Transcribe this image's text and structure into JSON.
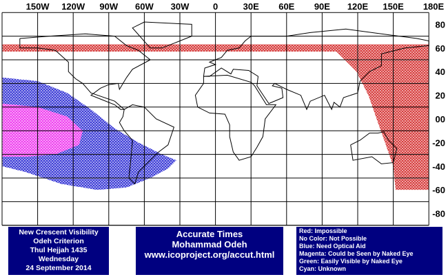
{
  "map": {
    "longitude_labels": [
      "150W",
      "120W",
      "90W",
      "60W",
      "30W",
      "0",
      "30E",
      "60E",
      "90E",
      "120E",
      "150E",
      "180E"
    ],
    "latitude_labels": [
      "80",
      "60",
      "40",
      "20",
      "00",
      "-20",
      "-40",
      "-60",
      "-80"
    ]
  },
  "panels": {
    "left": [
      "New Crescent Visibility",
      "Odeh Criterion",
      "Thul Hejjah 1435",
      "Wednesday",
      "24 September 2014"
    ],
    "middle": [
      "Accurate Times",
      "Mohammad Odeh",
      "www.icoproject.org/accut.html"
    ],
    "legend": [
      "Red: Impossible",
      "No Color: Not Possible",
      "Blue: Need Optical Aid",
      "Magenta: Could be Seen by Naked Eye",
      "Green: Easily Visible by Naked Eye",
      "Cyan: Unknown"
    ]
  }
}
